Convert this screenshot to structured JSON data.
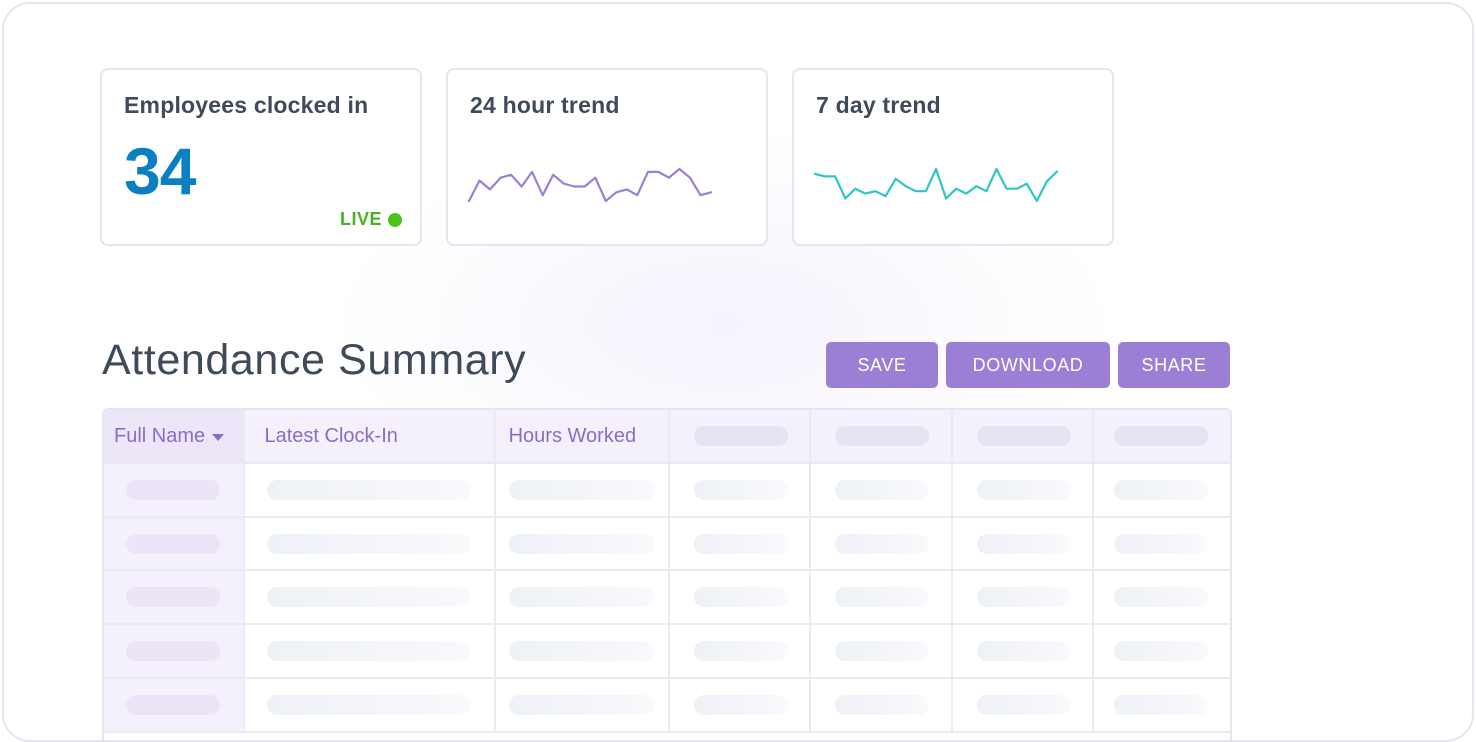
{
  "cards": {
    "clocked_in": {
      "title": "Employees clocked in",
      "count": "34",
      "live_label": "LIVE"
    },
    "trend_24h": {
      "title": "24 hour trend"
    },
    "trend_7d": {
      "title": "7 day trend"
    }
  },
  "sparklines": {
    "trend_24h": {
      "color": "#9b7fd4",
      "values": [
        2,
        9,
        6,
        10,
        11,
        7,
        12,
        4,
        11,
        8,
        7,
        7,
        10,
        2,
        5,
        6,
        4,
        12,
        12,
        10,
        13,
        10,
        4,
        5
      ]
    },
    "trend_7d": {
      "color": "#2ec6c6",
      "values": [
        14,
        13,
        13,
        4,
        8,
        6,
        7,
        5,
        12,
        9,
        7,
        7,
        16,
        4,
        8,
        6,
        9,
        7,
        16,
        8,
        8,
        10,
        3,
        11,
        15
      ]
    }
  },
  "section": {
    "title": "Attendance Summary"
  },
  "toolbar": {
    "save_label": "SAVE",
    "download_label": "DOWNLOAD",
    "share_label": "SHARE"
  },
  "table": {
    "columns": [
      "Full Name",
      "Latest Clock-In",
      "Hours Worked"
    ],
    "sorted_column": "Full Name",
    "sort_direction": "descending",
    "loading": true,
    "placeholder_rows": 5
  },
  "colors": {
    "accent": "#9b7fd4",
    "count": "#0a7fc2",
    "live": "#4cc21f",
    "text": "#3f4a5a"
  }
}
